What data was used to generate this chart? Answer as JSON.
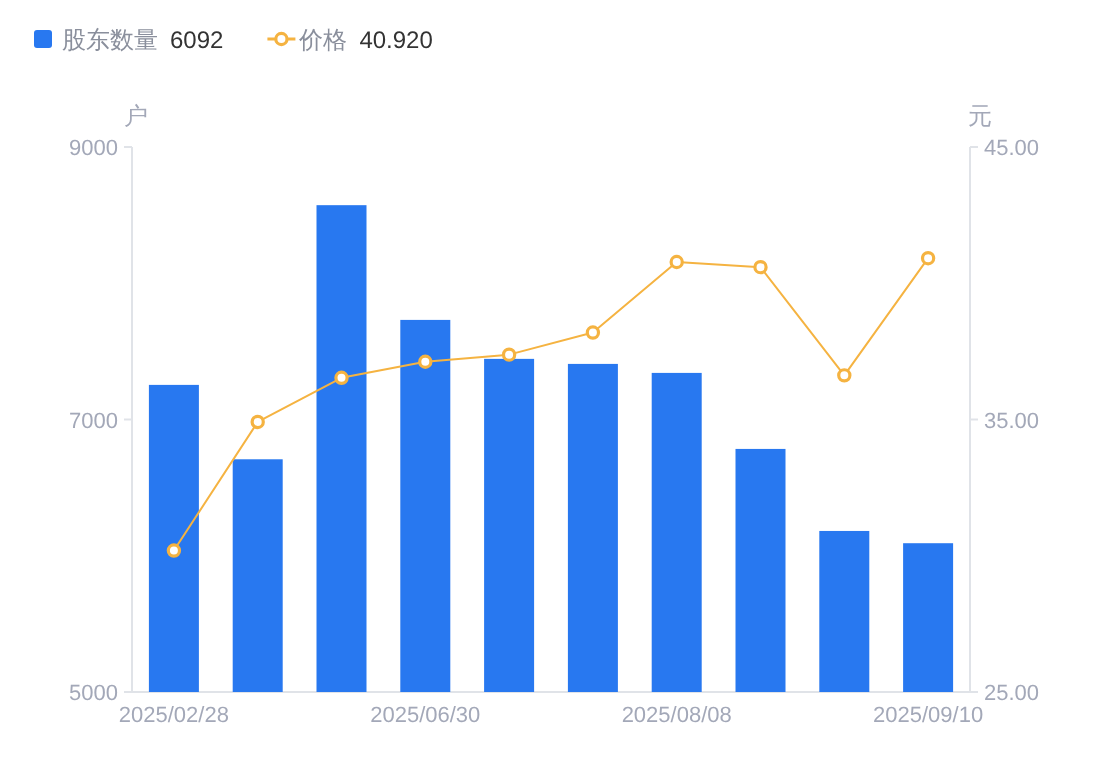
{
  "chart_data": {
    "type": "bar",
    "categories": [
      "2025/02/28",
      null,
      null,
      "2025/06/30",
      null,
      null,
      "2025/08/08",
      null,
      null,
      "2025/09/10"
    ],
    "series": [
      {
        "name": "股东数量",
        "color": "#2878f0",
        "values": [
          7254,
          6708,
          8573,
          7731,
          7445,
          7408,
          7342,
          6784,
          6182,
          6092
        ]
      },
      {
        "name": "价格",
        "type": "line",
        "axis": "y2",
        "color": "#f5b341",
        "marker": "circle",
        "values": [
          30.19,
          34.91,
          36.53,
          37.12,
          37.38,
          38.19,
          40.78,
          40.59,
          36.62,
          40.92
        ]
      }
    ],
    "ylabel": "户",
    "y2label": "元",
    "ylim": [
      5000,
      9000
    ],
    "yticks": [
      5000,
      7000,
      9000
    ],
    "y2lim": [
      25,
      45
    ],
    "y2ticks": [
      {
        "value": 25,
        "label": "25.00"
      },
      {
        "value": 35,
        "label": "35.00"
      },
      {
        "value": 45,
        "label": "45.00"
      }
    ],
    "legend": "top left",
    "annotations": [
      "6092",
      "40.920"
    ]
  }
}
